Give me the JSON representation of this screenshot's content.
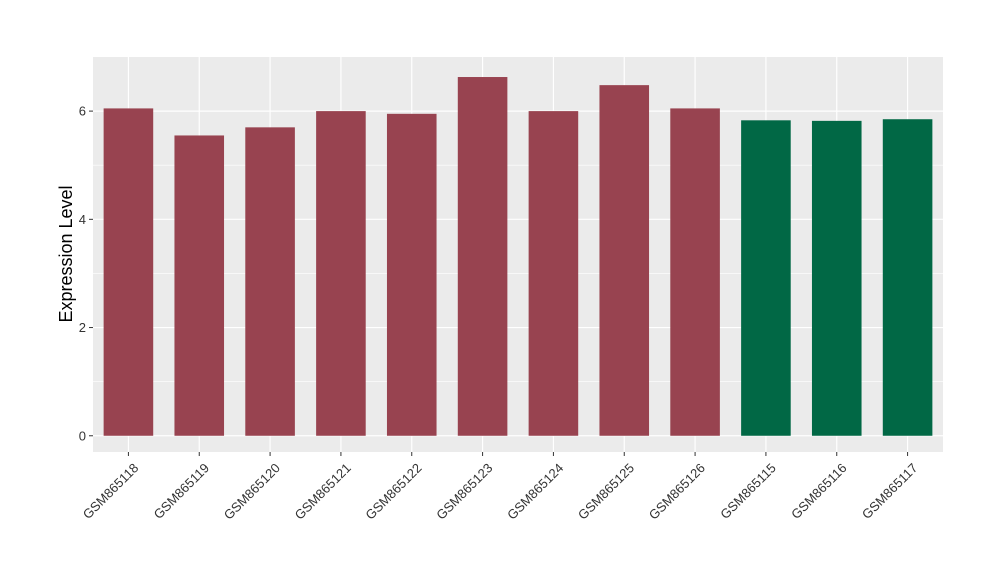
{
  "chart_data": {
    "type": "bar",
    "title": "",
    "xlabel": "",
    "ylabel": "Expression Level",
    "ylim": [
      -0.3,
      7.0
    ],
    "yticks": [
      0,
      2,
      4,
      6
    ],
    "grid": true,
    "categories": [
      "GSM865118",
      "GSM865119",
      "GSM865120",
      "GSM865121",
      "GSM865122",
      "GSM865123",
      "GSM865124",
      "GSM865125",
      "GSM865126",
      "GSM865115",
      "GSM865116",
      "GSM865117"
    ],
    "values": [
      6.05,
      5.55,
      5.7,
      6.0,
      5.95,
      6.63,
      6.0,
      6.48,
      6.05,
      5.83,
      5.82,
      5.85
    ],
    "bar_colors": [
      "#984350",
      "#984350",
      "#984350",
      "#984350",
      "#984350",
      "#984350",
      "#984350",
      "#984350",
      "#984350",
      "#016845",
      "#016845",
      "#016845"
    ],
    "panel_background": "#EBEBEB",
    "grid_color": "#FFFFFF"
  }
}
